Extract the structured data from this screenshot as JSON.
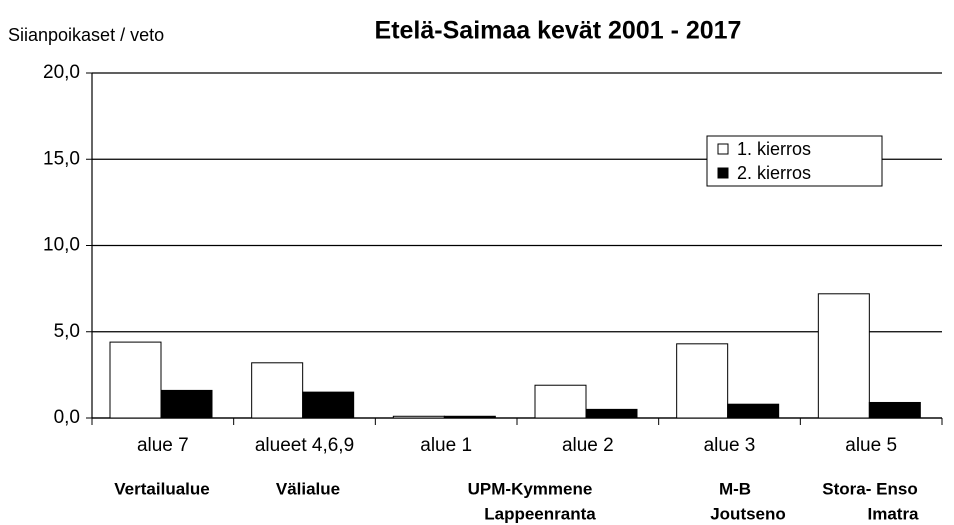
{
  "chart_data": {
    "type": "bar",
    "title": "Etelä-Saimaa kevät 2001 - 2017",
    "y_label": "Siianpoikaset / veto",
    "categories": [
      "alue 7",
      "alueet 4,6,9",
      "alue 1",
      "alue 2",
      "alue 3",
      "alue 5"
    ],
    "series": [
      {
        "name": "1. kierros",
        "color": "#ffffff",
        "values": [
          4.4,
          3.2,
          0.1,
          1.9,
          4.3,
          7.2
        ]
      },
      {
        "name": "2. kierros",
        "color": "#000000",
        "values": [
          1.6,
          1.5,
          0.1,
          0.5,
          0.8,
          0.9
        ]
      }
    ],
    "annotations": [
      "Vertailualue",
      "Välialue",
      "UPM-Kymmene",
      "Lappeenranta",
      "M-B",
      "Joutseno",
      "Stora- Enso",
      "Imatra"
    ],
    "ylim": [
      0,
      20
    ],
    "yticks": [
      {
        "value": 0,
        "label": "0,0"
      },
      {
        "value": 5,
        "label": "5,0"
      },
      {
        "value": 10,
        "label": "10,0"
      },
      {
        "value": 15,
        "label": "15,0"
      },
      {
        "value": 20,
        "label": "20,0"
      }
    ],
    "grid": true,
    "legend": "upper right"
  }
}
